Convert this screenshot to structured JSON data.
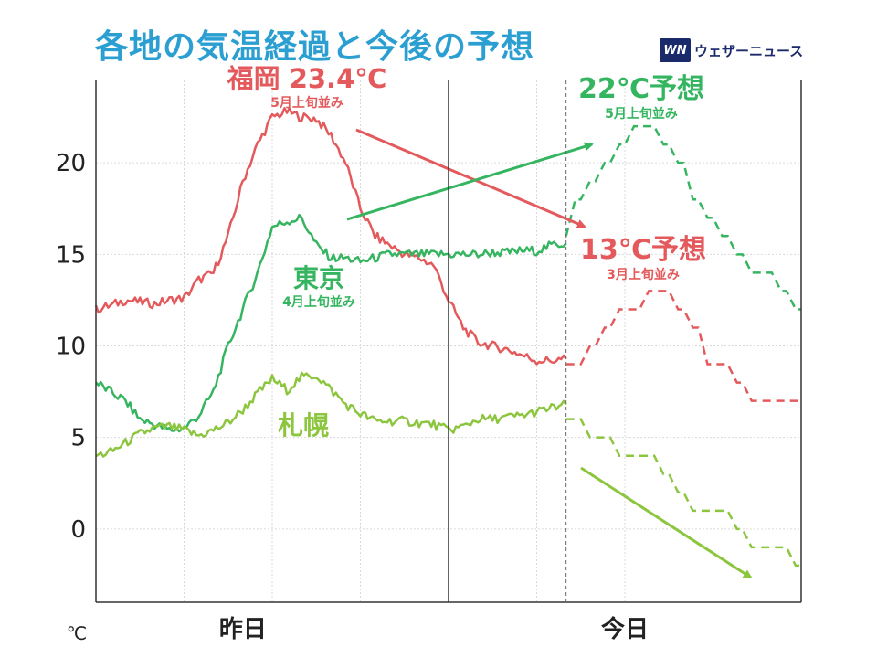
{
  "title": "各地の気温経過と今後の予想",
  "brand": {
    "logo": "WN",
    "name": "ウェザーニュース"
  },
  "colors": {
    "title": "#2b9fd1",
    "fukuoka": "#e45a5c",
    "tokyo": "#35b560",
    "sapporo": "#8cc63f",
    "brand": "#1b2a6b"
  },
  "labels": {
    "fukuoka": {
      "name": "福岡 23.4℃",
      "note": "5月上旬並み"
    },
    "tokyo": {
      "name": "東京",
      "note": "4月上旬並み"
    },
    "sapporo": {
      "name": "札幌"
    },
    "tokyo_forecast": {
      "name": "22℃予想",
      "note": "5月上旬並み"
    },
    "fukuoka_forecast": {
      "name": "13℃予想",
      "note": "3月上旬並み"
    }
  },
  "chart_data": {
    "type": "line",
    "title": "各地の気温経過と今後の予想",
    "ylabel": "℃",
    "ylim": [
      -4,
      24.5
    ],
    "yticks": [
      0,
      5,
      10,
      15,
      20
    ],
    "x_hours_range": [
      0,
      48
    ],
    "x_category_labels": [
      "昨日",
      "今日"
    ],
    "grid": true,
    "observed": [
      {
        "name": "福岡",
        "x_hours": [
          0,
          1,
          2,
          3,
          4,
          5,
          6,
          7,
          8,
          9,
          10,
          11,
          12,
          13,
          14,
          15,
          16,
          17,
          18,
          19,
          20,
          21,
          22,
          23,
          24,
          25,
          26,
          27,
          28,
          29,
          30,
          31,
          32
        ],
        "values": [
          12,
          12.2,
          12.5,
          12.4,
          12.3,
          12.5,
          12.6,
          13.6,
          14,
          16,
          19,
          21,
          22.5,
          22.8,
          22.5,
          22.4,
          21.5,
          20,
          17.5,
          16,
          15.5,
          15,
          14.8,
          14.4,
          12.5,
          11,
          10.2,
          10,
          9.8,
          9.5,
          9.2,
          9.2,
          9.3
        ]
      },
      {
        "name": "東京",
        "x_hours": [
          0,
          1,
          2,
          3,
          4,
          5,
          6,
          7,
          8,
          9,
          10,
          11,
          12,
          13,
          14,
          15,
          16,
          17,
          18,
          19,
          20,
          21,
          22,
          23,
          24,
          25,
          26,
          27,
          28,
          29,
          30,
          31,
          32
        ],
        "values": [
          8,
          7.5,
          7,
          6,
          5.7,
          5.4,
          5.5,
          6.2,
          7.5,
          10,
          12,
          14,
          16.5,
          16.8,
          17,
          15.5,
          14.8,
          14.8,
          14.6,
          14.8,
          15,
          15,
          15,
          15,
          15,
          15,
          15,
          15.1,
          15.1,
          15.2,
          15.2,
          15.5,
          15.6
        ]
      },
      {
        "name": "札幌",
        "x_hours": [
          0,
          1,
          2,
          3,
          4,
          5,
          6,
          7,
          8,
          9,
          10,
          11,
          12,
          13,
          14,
          15,
          16,
          17,
          18,
          19,
          20,
          21,
          22,
          23,
          24,
          25,
          26,
          27,
          28,
          29,
          30,
          31,
          32
        ],
        "values": [
          4,
          4.2,
          4.7,
          5.2,
          5.5,
          5.6,
          5.4,
          5.1,
          5.4,
          5.8,
          6.5,
          7.4,
          8.2,
          7.6,
          8.3,
          8.4,
          7.6,
          6.8,
          6.3,
          5.9,
          5.9,
          5.9,
          5.8,
          5.7,
          5.4,
          5.6,
          6.0,
          6.0,
          6.1,
          6.2,
          6.4,
          6.6,
          6.8
        ]
      }
    ],
    "forecast": [
      {
        "name": "東京",
        "x_hours": [
          32,
          33,
          34,
          35,
          36,
          37,
          38,
          39,
          40,
          41,
          42,
          43,
          44,
          45,
          46,
          47,
          48
        ],
        "values": [
          16,
          18,
          19,
          20,
          21,
          22,
          22,
          21,
          20,
          18,
          17,
          16,
          15,
          14,
          14,
          13,
          12
        ]
      },
      {
        "name": "福岡",
        "x_hours": [
          32,
          33,
          34,
          35,
          36,
          37,
          38,
          39,
          40,
          41,
          42,
          43,
          44,
          45,
          46,
          47,
          48
        ],
        "values": [
          9,
          9,
          10,
          11,
          12,
          12,
          13,
          13,
          12,
          11,
          9,
          9,
          8,
          7,
          7,
          7,
          7
        ]
      },
      {
        "name": "札幌",
        "x_hours": [
          32,
          33,
          34,
          35,
          36,
          37,
          38,
          39,
          40,
          41,
          42,
          43,
          44,
          45,
          46,
          47,
          48
        ],
        "values": [
          6,
          6,
          5,
          5,
          4,
          4,
          4,
          3,
          2,
          1,
          1,
          1,
          0,
          -1,
          -1,
          -1,
          -2
        ]
      }
    ]
  }
}
